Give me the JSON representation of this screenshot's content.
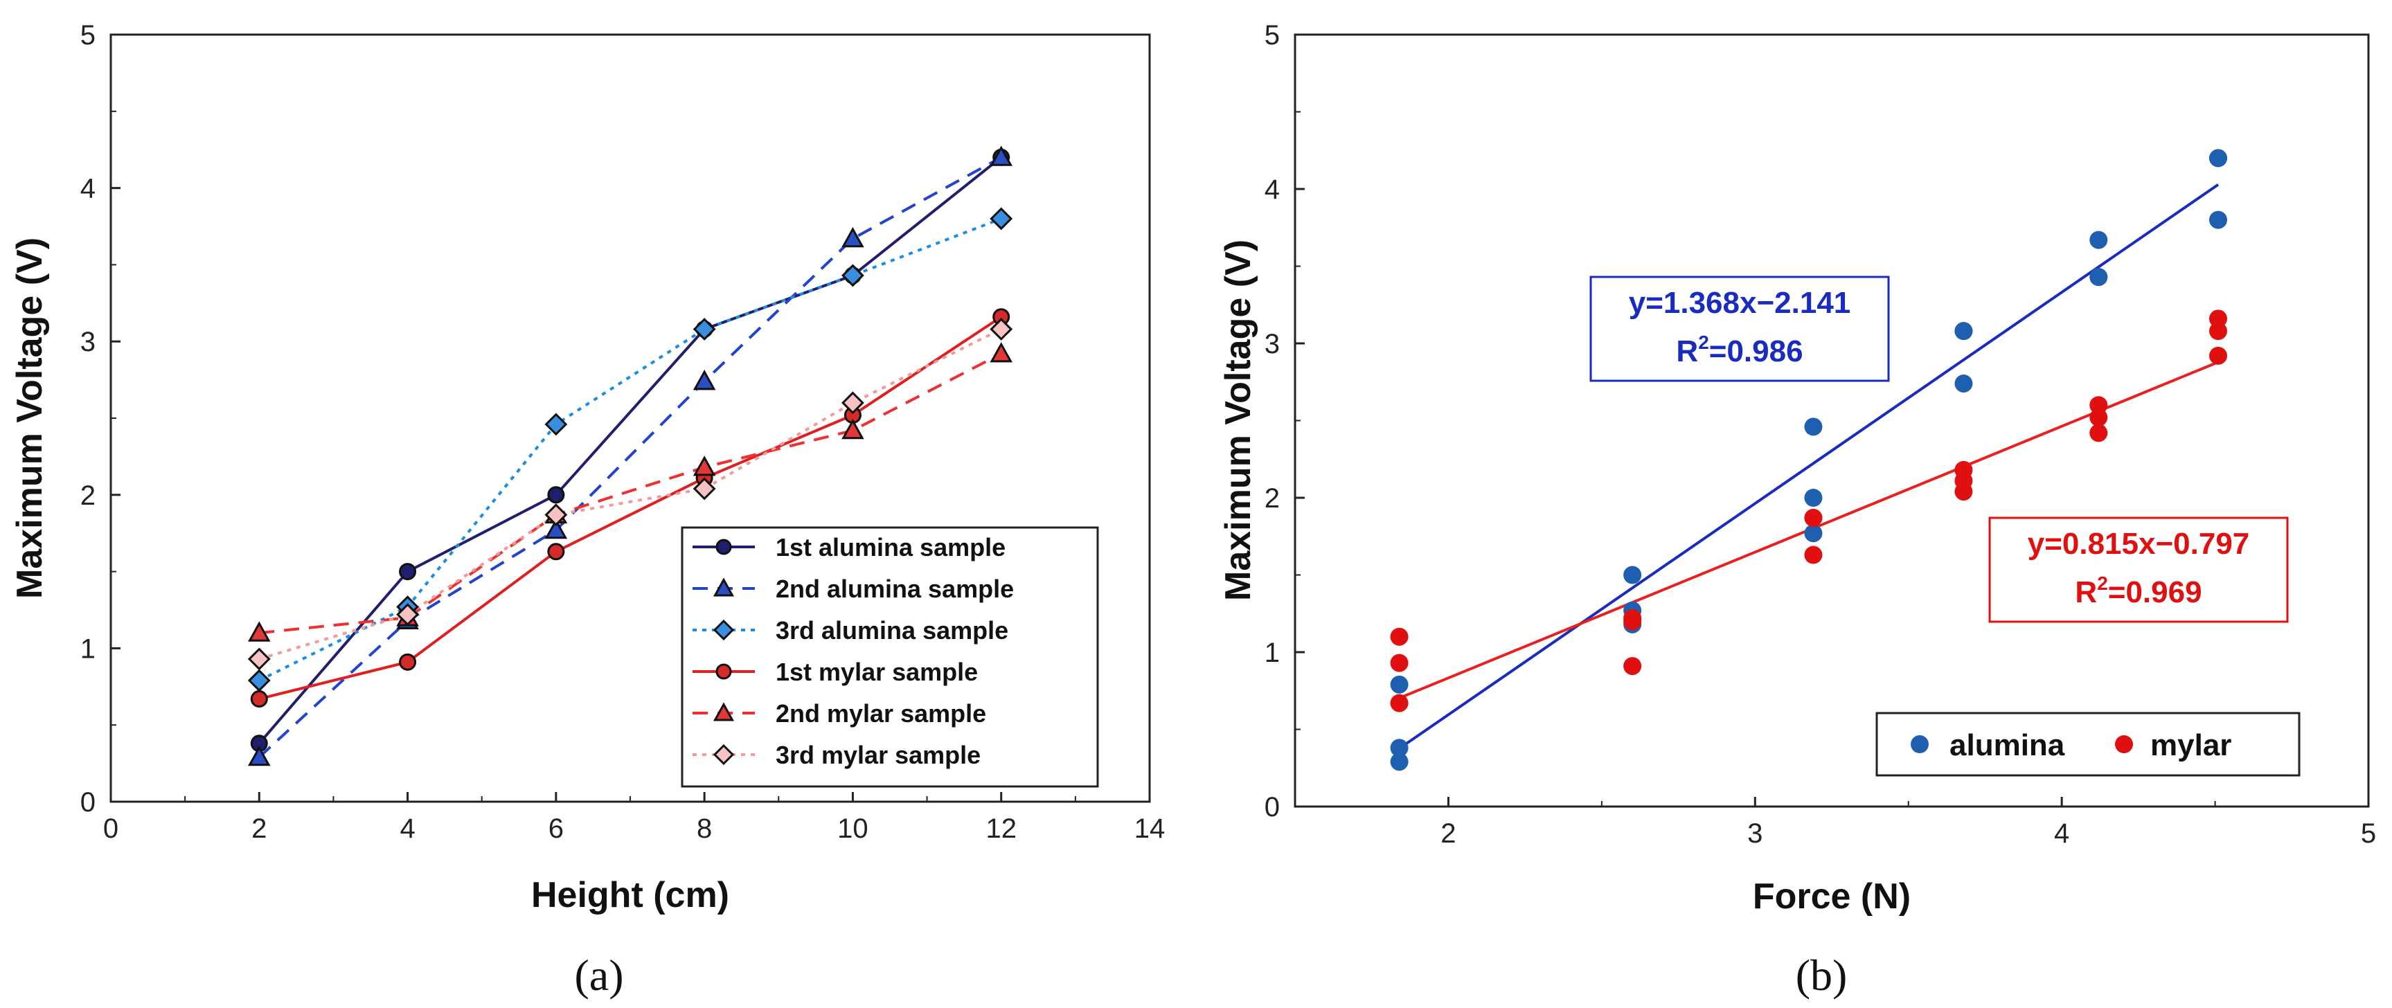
{
  "chart_data": [
    {
      "type": "line",
      "panel_label": "(a)",
      "xlabel": "Height (cm)",
      "ylabel": "Maximum Voltage (V)",
      "xlim": [
        0,
        14
      ],
      "ylim": [
        0,
        5
      ],
      "xticks": [
        0,
        2,
        4,
        6,
        8,
        10,
        12,
        14
      ],
      "yticks": [
        0,
        1,
        2,
        3,
        4,
        5
      ],
      "x": [
        2,
        4,
        6,
        8,
        10,
        12
      ],
      "legend_position": "bottom-right",
      "series": [
        {
          "name": "1st alumina sample",
          "values": [
            0.38,
            1.5,
            2.0,
            3.08,
            3.43,
            4.2
          ],
          "color": "#1f1f6e",
          "marker_fill": "#1f1f6e",
          "marker": "circle",
          "dash": "solid"
        },
        {
          "name": "2nd alumina sample",
          "values": [
            0.29,
            1.18,
            1.77,
            2.74,
            3.67,
            4.2
          ],
          "color": "#2244cc",
          "marker_fill": "#2a4fc4",
          "marker": "triangle",
          "dash": "dashed"
        },
        {
          "name": "3rd alumina sample",
          "values": [
            0.79,
            1.27,
            2.46,
            3.08,
            3.43,
            3.8
          ],
          "color": "#1c8ce0",
          "marker_fill": "#3a8ee0",
          "marker": "diamond",
          "dash": "dotted"
        },
        {
          "name": "1st mylar sample",
          "values": [
            0.67,
            0.91,
            1.63,
            2.11,
            2.52,
            3.16
          ],
          "color": "#e02020",
          "marker_fill": "#d42a2a",
          "marker": "circle",
          "dash": "solid"
        },
        {
          "name": "2nd mylar sample",
          "values": [
            1.1,
            1.2,
            1.87,
            2.18,
            2.42,
            2.92
          ],
          "color": "#ee3030",
          "marker_fill": "#e23838",
          "marker": "triangle",
          "dash": "dashed"
        },
        {
          "name": "3rd mylar sample",
          "values": [
            0.93,
            1.22,
            1.87,
            2.04,
            2.6,
            3.08
          ],
          "color": "#f29a9a",
          "marker_fill": "#f6c2c2",
          "marker": "diamond",
          "dash": "dotted"
        }
      ]
    },
    {
      "type": "scatter",
      "panel_label": "(b)",
      "xlabel": "Force (N)",
      "ylabel": "Maximum Voltage (V)",
      "xlim": [
        1.5,
        5
      ],
      "ylim": [
        0,
        5
      ],
      "xticks": [
        2,
        3,
        4,
        5
      ],
      "yticks": [
        0,
        1,
        2,
        3,
        4,
        5
      ],
      "legend_position": "bottom-right",
      "series": [
        {
          "name": "alumina",
          "color": "#1f5fb0",
          "fit_color": "#1a2cc0",
          "x": [
            1.84,
            1.84,
            1.84,
            2.6,
            2.6,
            2.6,
            3.19,
            3.19,
            3.19,
            3.68,
            3.68,
            3.68,
            4.12,
            4.12,
            4.12,
            4.51,
            4.51,
            4.51
          ],
          "y": [
            0.38,
            0.29,
            0.79,
            1.5,
            1.18,
            1.27,
            2.0,
            1.77,
            2.46,
            3.08,
            2.74,
            3.08,
            3.43,
            3.67,
            3.43,
            4.2,
            4.2,
            3.8
          ],
          "fit": {
            "slope": 1.368,
            "intercept": -2.141,
            "x_range": [
              1.84,
              4.51
            ]
          },
          "equation": "y=1.368x−2.141",
          "r2_label": "R",
          "r2_sup": "2",
          "r2_value": "=0.986"
        },
        {
          "name": "mylar",
          "color": "#e01010",
          "fit_color": "#e82020",
          "x": [
            1.84,
            1.84,
            1.84,
            2.6,
            2.6,
            2.6,
            3.19,
            3.19,
            3.19,
            3.68,
            3.68,
            3.68,
            4.12,
            4.12,
            4.12,
            4.51,
            4.51,
            4.51
          ],
          "y": [
            0.67,
            1.1,
            0.93,
            0.91,
            1.2,
            1.22,
            1.63,
            1.87,
            1.87,
            2.11,
            2.18,
            2.04,
            2.52,
            2.42,
            2.6,
            3.16,
            2.92,
            3.08
          ],
          "fit": {
            "slope": 0.815,
            "intercept": -0.797,
            "x_range": [
              1.84,
              4.51
            ]
          },
          "equation": "y=0.815x−0.797",
          "r2_label": "R",
          "r2_sup": "2",
          "r2_value": "=0.969"
        }
      ]
    }
  ]
}
